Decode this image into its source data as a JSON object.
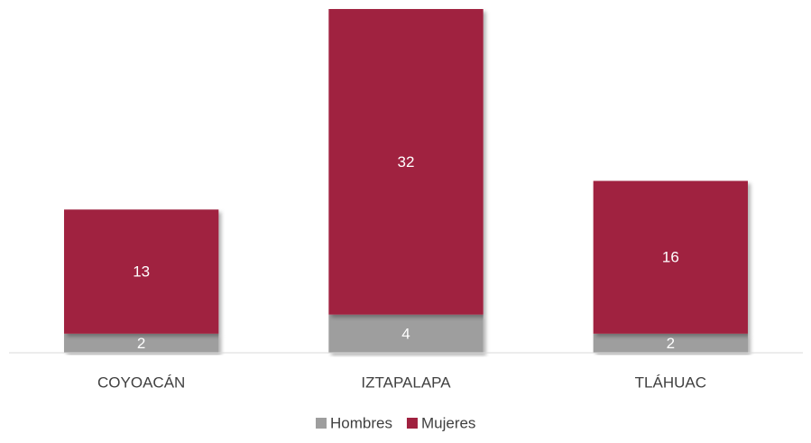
{
  "chart_data": {
    "type": "stacked_bar",
    "categories": [
      "COYOACÁN",
      "IZTAPALAPA",
      "TLÁHUAC"
    ],
    "series": [
      {
        "name": "Hombres",
        "color": "#9e9e9e",
        "values": [
          2,
          4,
          2
        ]
      },
      {
        "name": "Mujeres",
        "color": "#a0213f",
        "values": [
          13,
          32,
          16
        ]
      }
    ],
    "legend": "bottom"
  }
}
